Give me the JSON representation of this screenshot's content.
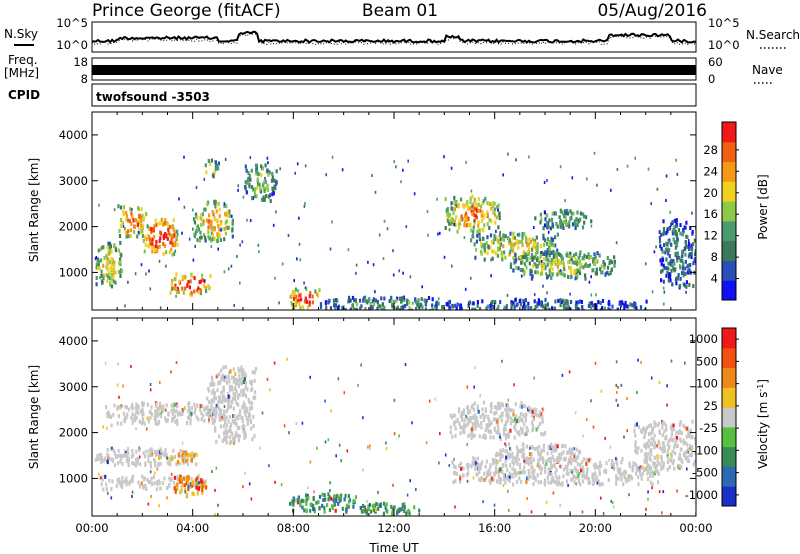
{
  "header": {
    "radar": "Prince George (fitACF)",
    "beam": "Beam 01",
    "date": "05/Aug/2016"
  },
  "noise_panel": {
    "left_label": "N.Sky",
    "right_label": "N.Search",
    "ticks_left": [
      "10^5",
      "10^0"
    ],
    "ticks_right": [
      "10^5",
      "10^0"
    ]
  },
  "freq_panel": {
    "left_label_1": "Freq.",
    "left_label_2": "[MHz]",
    "right_label": "Nave",
    "ticks_left": [
      "18",
      "8"
    ],
    "ticks_right": [
      "60",
      "0"
    ]
  },
  "cpid_panel": {
    "label": "CPID",
    "program": "twofsound  -3503"
  },
  "chart_data": [
    {
      "type": "heatmap",
      "name": "power",
      "ylabel": "Slant Range [km]",
      "ylim": [
        180,
        4500
      ],
      "y_ticks": [
        1000,
        2000,
        3000,
        4000
      ],
      "x_range_hours": [
        0,
        24
      ],
      "colorbar": {
        "label": "Power [dB]",
        "ticks": [
          "4",
          "8",
          "12",
          "16",
          "20",
          "24",
          "28"
        ],
        "colors": [
          "#1010f0",
          "#2a50b8",
          "#3a7a58",
          "#4a9a70",
          "#8ec848",
          "#f0d020",
          "#f59a18",
          "#f06010",
          "#f01818"
        ]
      },
      "regions": [
        {
          "t": [
            0.1,
            1.2
          ],
          "r": [
            700,
            1700
          ],
          "level": 0.55
        },
        {
          "t": [
            1.0,
            2.2
          ],
          "r": [
            1800,
            2500
          ],
          "level": 0.7
        },
        {
          "t": [
            2.0,
            3.4
          ],
          "r": [
            1400,
            2200
          ],
          "level": 0.85
        },
        {
          "t": [
            3.0,
            4.7
          ],
          "r": [
            550,
            1000
          ],
          "level": 0.8
        },
        {
          "t": [
            4.0,
            5.6
          ],
          "r": [
            1700,
            2600
          ],
          "level": 0.6
        },
        {
          "t": [
            4.4,
            5.0
          ],
          "r": [
            3100,
            3500
          ],
          "level": 0.45
        },
        {
          "t": [
            6.0,
            7.3
          ],
          "r": [
            2600,
            3400
          ],
          "level": 0.4
        },
        {
          "t": [
            7.8,
            9.0
          ],
          "r": [
            250,
            700
          ],
          "level": 0.85
        },
        {
          "t": [
            9.0,
            14.5
          ],
          "r": [
            180,
            500
          ],
          "level": 0.3
        },
        {
          "t": [
            14.0,
            16.2
          ],
          "r": [
            1900,
            2700
          ],
          "level": 0.65
        },
        {
          "t": [
            15.0,
            18.5
          ],
          "r": [
            1300,
            1900
          ],
          "level": 0.5
        },
        {
          "t": [
            16.5,
            20.8
          ],
          "r": [
            900,
            1500
          ],
          "level": 0.45
        },
        {
          "t": [
            17.5,
            19.8
          ],
          "r": [
            2000,
            2400
          ],
          "level": 0.35
        },
        {
          "t": [
            22.5,
            24.0
          ],
          "r": [
            700,
            2200
          ],
          "level": 0.25
        },
        {
          "t": [
            14.0,
            22.0
          ],
          "r": [
            180,
            450
          ],
          "level": 0.2
        }
      ]
    },
    {
      "type": "heatmap",
      "name": "velocity",
      "ylabel": "Slant Range [km]",
      "xlabel": "Time UT",
      "ylim": [
        180,
        4500
      ],
      "y_ticks": [
        1000,
        2000,
        3000,
        4000
      ],
      "x_ticks": [
        "00:00",
        "04:00",
        "08:00",
        "12:00",
        "16:00",
        "20:00",
        "00:00"
      ],
      "x_range_hours": [
        0,
        24
      ],
      "colorbar": {
        "label": "Velocity [m s",
        "label_sup": "-1",
        "label_close": "]",
        "ticks": [
          "1000",
          "500",
          "100",
          "25",
          "-25",
          "-100",
          "-500",
          "-1000"
        ],
        "colors": [
          "#1830c8",
          "#2a6ab0",
          "#3a8a58",
          "#58c040",
          "#c8c8c8",
          "#f0c020",
          "#f08818",
          "#f05010",
          "#f01818"
        ]
      },
      "regions": [
        {
          "t": [
            0.1,
            4.2
          ],
          "r": [
            1300,
            1700
          ],
          "color": "gray"
        },
        {
          "t": [
            0.3,
            4.5
          ],
          "r": [
            800,
            1100
          ],
          "color": "gray"
        },
        {
          "t": [
            0.5,
            5.0
          ],
          "r": [
            2200,
            2700
          ],
          "color": "gray"
        },
        {
          "t": [
            2.5,
            4.2
          ],
          "r": [
            1400,
            1600
          ],
          "color": "yellow"
        },
        {
          "t": [
            3.2,
            4.5
          ],
          "r": [
            650,
            1100
          ],
          "color": "orange"
        },
        {
          "t": [
            4.0,
            4.4
          ],
          "r": [
            800,
            1000
          ],
          "color": "red"
        },
        {
          "t": [
            4.5,
            6.5
          ],
          "r": [
            1800,
            3500
          ],
          "color": "gray"
        },
        {
          "t": [
            7.8,
            10.5
          ],
          "r": [
            300,
            700
          ],
          "color": "green"
        },
        {
          "t": [
            10.5,
            13.0
          ],
          "r": [
            250,
            500
          ],
          "color": "green"
        },
        {
          "t": [
            14.2,
            22.5
          ],
          "r": [
            900,
            1500
          ],
          "color": "gray"
        },
        {
          "t": [
            14.2,
            18.0
          ],
          "r": [
            1900,
            2700
          ],
          "color": "gray"
        },
        {
          "t": [
            16.0,
            19.5
          ],
          "r": [
            1400,
            1800
          ],
          "color": "gray"
        },
        {
          "t": [
            21.5,
            24.0
          ],
          "r": [
            1200,
            2300
          ],
          "color": "gray"
        }
      ]
    }
  ]
}
